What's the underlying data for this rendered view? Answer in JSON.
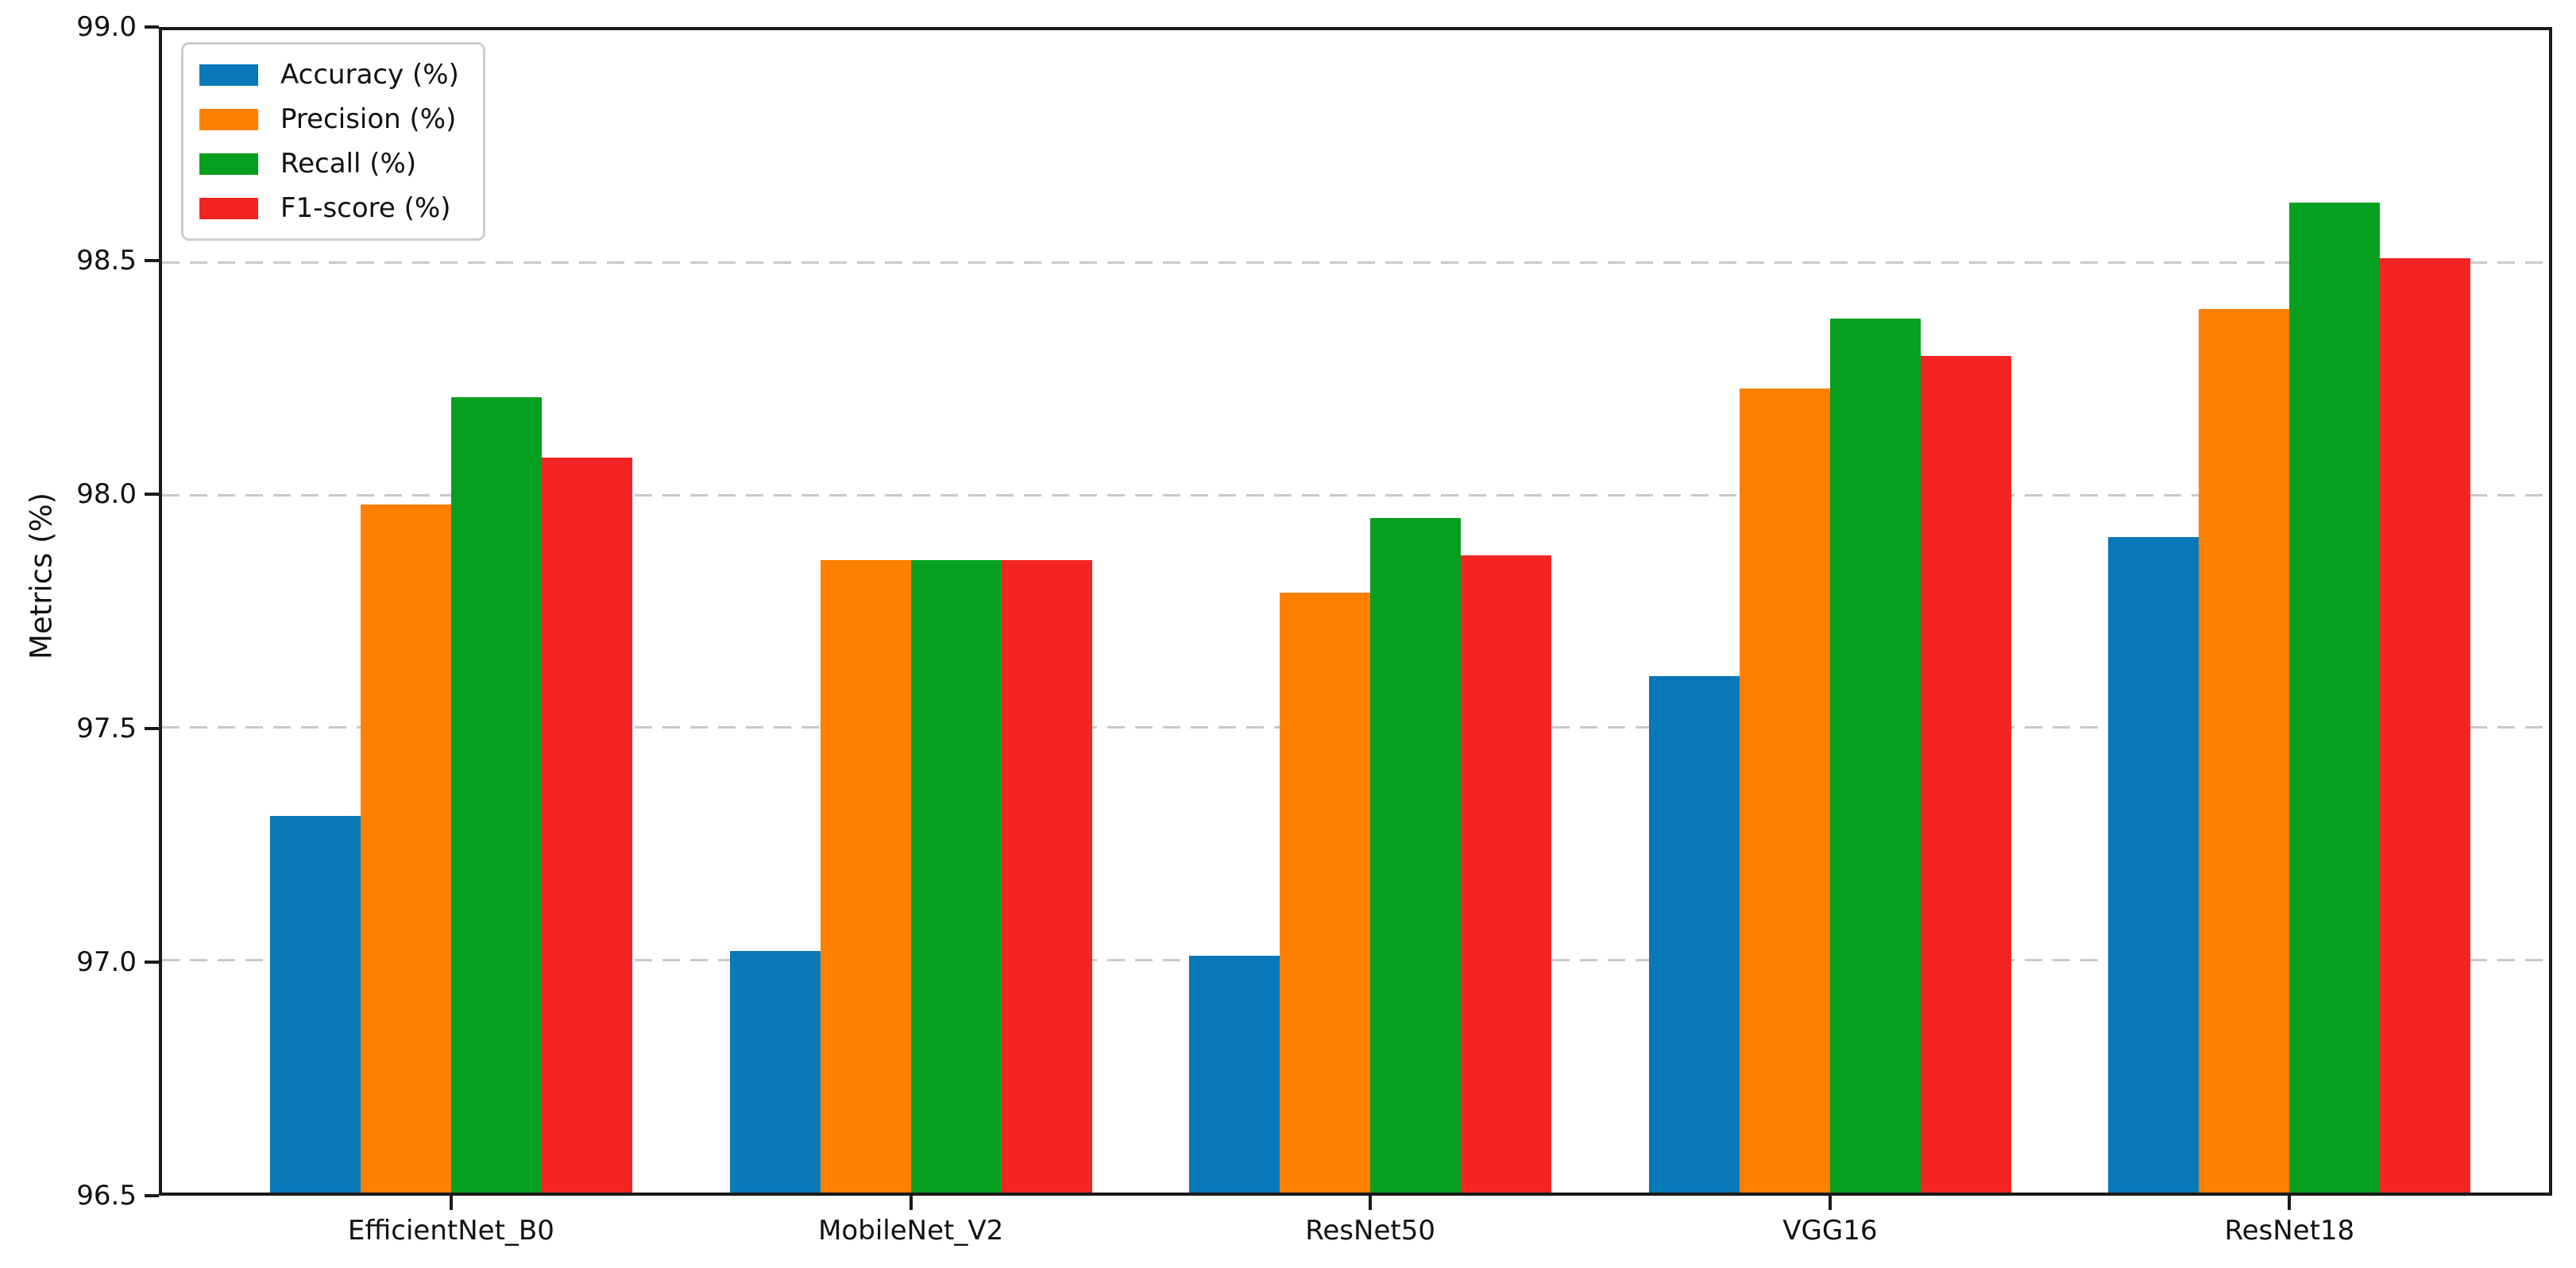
{
  "chart_data": {
    "type": "bar",
    "title": "",
    "xlabel": "",
    "ylabel": "Metrics (%)",
    "ylim": [
      96.5,
      99.0
    ],
    "ytick_step": 0.5,
    "ytick_labels": [
      "96.5",
      "97.0",
      "97.5",
      "98.0",
      "98.5",
      "99.0"
    ],
    "grid": "horizontal dashed gridlines at interior y-ticks",
    "legend_position": "upper-left",
    "categories": [
      "EfficientNet_B0",
      "MobileNet_V2",
      "ResNet50",
      "VGG16",
      "ResNet18"
    ],
    "series": [
      {
        "name": "Accuracy (%)",
        "color": "#0878b8",
        "values": [
          97.31,
          97.02,
          97.01,
          97.61,
          97.91
        ]
      },
      {
        "name": "Precision (%)",
        "color": "#ff8000",
        "values": [
          97.98,
          97.86,
          97.79,
          98.23,
          98.4
        ]
      },
      {
        "name": "Recall (%)",
        "color": "#05a01f",
        "values": [
          98.21,
          97.86,
          97.95,
          98.38,
          98.63
        ]
      },
      {
        "name": "F1-score (%)",
        "color": "#f42424",
        "values": [
          98.08,
          97.86,
          97.87,
          98.3,
          98.51
        ]
      }
    ]
  },
  "colors": {
    "background": "#ffffff",
    "spine": "#1a1a1a",
    "grid": "#c9c9c9",
    "text": "#111111",
    "legend_border": "#cccccc"
  }
}
